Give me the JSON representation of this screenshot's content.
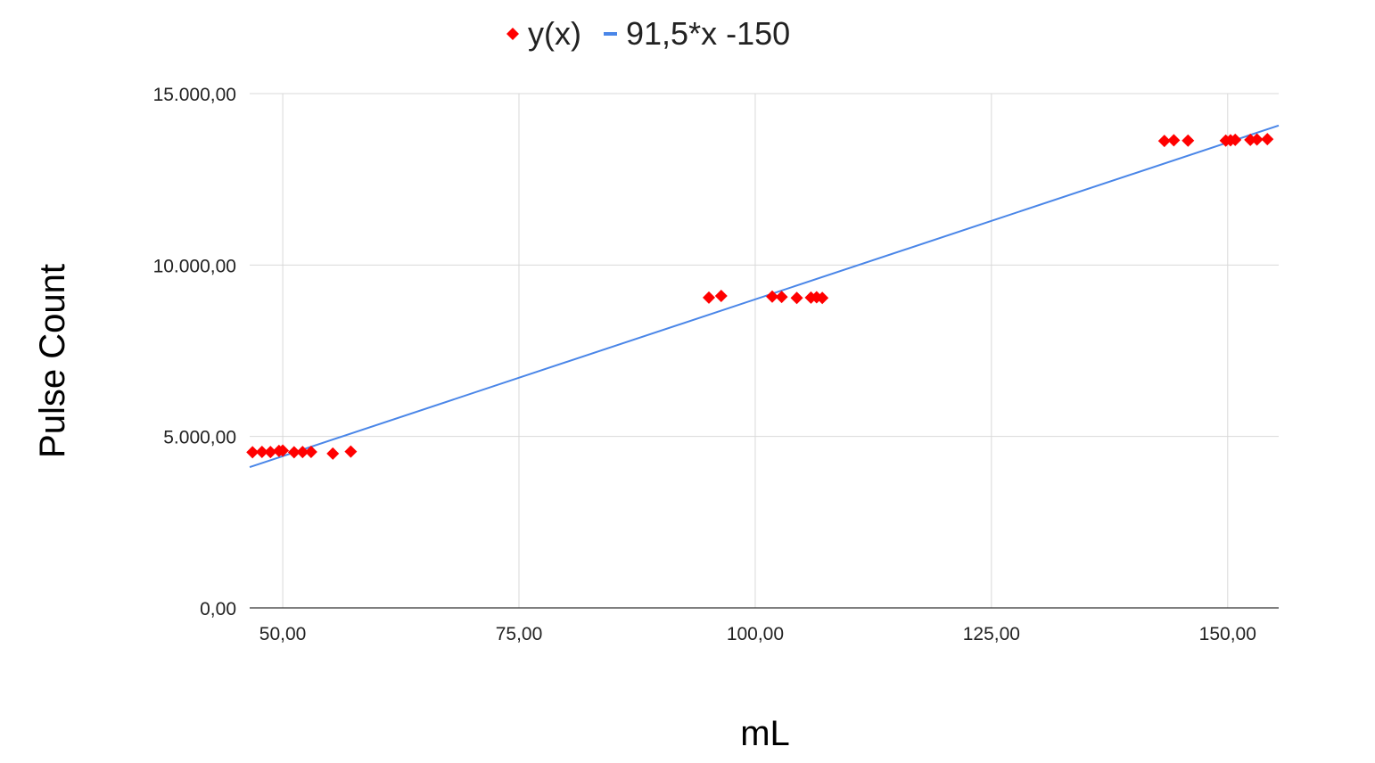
{
  "chart_data": {
    "type": "scatter",
    "title": "",
    "xlabel": "mL",
    "ylabel": "Pulse Count",
    "xlim": [
      46.5,
      155.4
    ],
    "ylim": [
      0,
      15000
    ],
    "x_ticks": [
      50,
      75,
      100,
      125,
      150
    ],
    "x_tick_labels": [
      "50,00",
      "75,00",
      "100,00",
      "125,00",
      "150,00"
    ],
    "y_ticks": [
      0,
      5000,
      10000,
      15000
    ],
    "y_tick_labels": [
      "0,00",
      "5.000,00",
      "10.000,00",
      "15.000,00"
    ],
    "grid": true,
    "legend_position": "top",
    "series": [
      {
        "name": "y(x)",
        "type": "scatter",
        "marker": "diamond",
        "color": "#ff0000",
        "points": [
          [
            46.8,
            4540
          ],
          [
            47.8,
            4550
          ],
          [
            48.7,
            4545
          ],
          [
            49.6,
            4580
          ],
          [
            50.0,
            4590
          ],
          [
            51.2,
            4540
          ],
          [
            52.1,
            4545
          ],
          [
            53.0,
            4550
          ],
          [
            55.3,
            4500
          ],
          [
            57.2,
            4560
          ],
          [
            95.1,
            9050
          ],
          [
            96.4,
            9100
          ],
          [
            101.8,
            9080
          ],
          [
            102.8,
            9070
          ],
          [
            104.4,
            9040
          ],
          [
            105.9,
            9050
          ],
          [
            106.5,
            9060
          ],
          [
            107.1,
            9040
          ],
          [
            143.3,
            13620
          ],
          [
            144.3,
            13640
          ],
          [
            145.8,
            13630
          ],
          [
            149.8,
            13630
          ],
          [
            150.3,
            13640
          ],
          [
            150.8,
            13650
          ],
          [
            152.4,
            13650
          ],
          [
            153.1,
            13660
          ],
          [
            154.2,
            13670
          ]
        ]
      },
      {
        "name": "91,5*x -150",
        "type": "line",
        "color": "#4a86e8",
        "slope": 91.5,
        "intercept": -150
      }
    ]
  }
}
